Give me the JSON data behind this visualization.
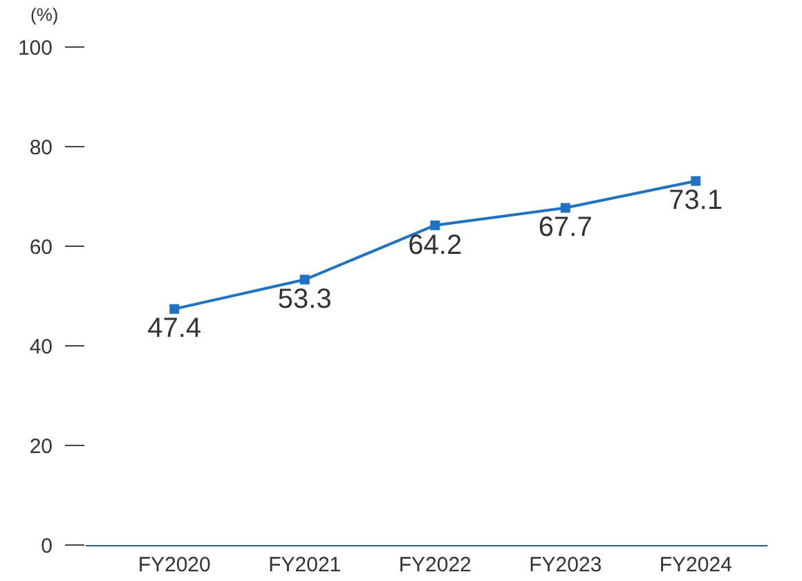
{
  "chart_data": {
    "type": "line",
    "ylabel": "(%)",
    "categories": [
      "FY2020",
      "FY2021",
      "FY2022",
      "FY2023",
      "FY2024"
    ],
    "series": [
      {
        "color": "#1f72c4",
        "values": [
          47.4,
          53.3,
          64.2,
          67.7,
          73.1
        ]
      }
    ],
    "ylim": [
      0,
      100
    ],
    "yticks": [
      0,
      20,
      40,
      60,
      80,
      100
    ],
    "data_labels": true,
    "marker": "square",
    "line_style": "solid"
  }
}
